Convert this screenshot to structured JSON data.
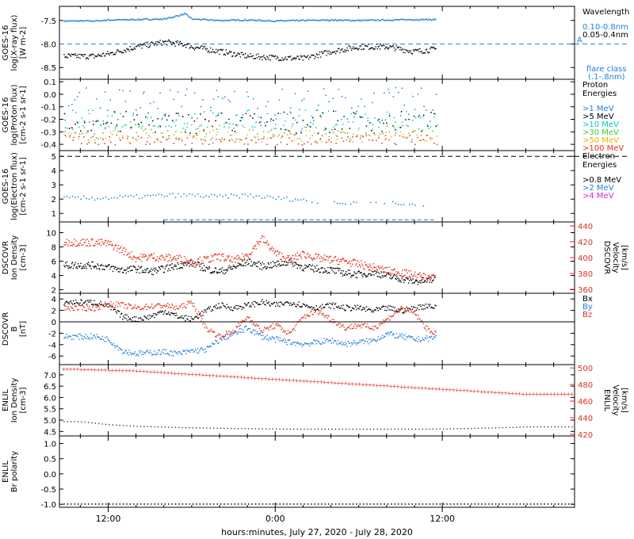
{
  "footer_label": "hours:minutes, July 27, 2020 - July 28, 2020",
  "x_ticks": [
    "12:00",
    "0:00",
    "12:00"
  ],
  "chart_data": [
    {
      "type": "scatter",
      "id": "xray",
      "ylabel_lines": [
        "GOES-16",
        "log(X-ray flux)",
        "[W m-2]"
      ],
      "yrange": [
        -8.75,
        -7.2
      ],
      "y_ticks": [
        "-7.5",
        "-8.0",
        "-8.5"
      ],
      "legend_title": [
        "Wavelength"
      ],
      "legend": [
        {
          "name": "0.10-0.8nm",
          "color": "#1f7fdc"
        },
        {
          "name": "0.05-0.4nm",
          "color": "#000000"
        }
      ],
      "annotations": [
        "A",
        "flare class",
        "(.1-.8nm)"
      ],
      "reference_line": {
        "y": -8.0,
        "label": "A",
        "color": "#1f7fdc"
      },
      "x_hours": [
        -1,
        0,
        2,
        4,
        5.5,
        6,
        8,
        10,
        12,
        14,
        16,
        18,
        20,
        22,
        23.5
      ],
      "series": [
        {
          "name": "0.10-0.8nm",
          "color": "#1f7fdc",
          "y": [
            -7.5,
            -7.48,
            -7.47,
            -7.46,
            -7.35,
            -7.46,
            -7.49,
            -7.48,
            -7.5,
            -7.49,
            -7.48,
            -7.49,
            -7.48,
            -7.47,
            -7.47
          ]
        },
        {
          "name": "0.05-0.4nm",
          "color": "#000000",
          "y": [
            -8.25,
            -8.2,
            -8.05,
            -7.95,
            -8.0,
            -8.05,
            -8.15,
            -8.25,
            -8.28,
            -8.3,
            -8.15,
            -8.05,
            -8.05,
            -8.15,
            -8.1
          ]
        }
      ]
    },
    {
      "type": "scatter",
      "id": "proton",
      "ylabel_lines": [
        "GOES-16",
        "log(Proton flux)",
        "[cm-2 s-1 sr-1]"
      ],
      "yrange": [
        -0.45,
        0.12
      ],
      "y_ticks": [
        "0.1",
        "0.0",
        "-0.1",
        "-0.2",
        "-0.3",
        "-0.4"
      ],
      "legend_title": [
        "Proton",
        "Energies"
      ],
      "legend": [
        {
          "name": ">1 MeV",
          "color": "#1f7fdc"
        },
        {
          "name": ">5 MeV",
          "color": "#000000"
        },
        {
          "name": ">10 MeV",
          "color": "#00c8c8"
        },
        {
          "name": ">30 MeV",
          "color": "#3cc83c"
        },
        {
          "name": ">50 MeV",
          "color": "#e6b400"
        },
        {
          "name": ">100 MeV",
          "color": "#e0301e"
        }
      ],
      "series": [
        {
          "name": ">1 MeV",
          "color": "#1f7fdc",
          "center": -0.08,
          "spread": 0.14
        },
        {
          "name": ">5 MeV",
          "color": "#000000",
          "center": -0.22,
          "spread": 0.09
        },
        {
          "name": ">10 MeV",
          "color": "#00c8c8",
          "center": -0.2,
          "spread": 0.08
        },
        {
          "name": ">30 MeV",
          "color": "#3cc83c",
          "center": -0.3,
          "spread": 0.06
        },
        {
          "name": ">50 MeV",
          "color": "#e6b400",
          "center": -0.33,
          "spread": 0.05
        },
        {
          "name": ">100 MeV",
          "color": "#e0301e",
          "center": -0.36,
          "spread": 0.04
        }
      ]
    },
    {
      "type": "scatter",
      "id": "electron",
      "ylabel_lines": [
        "GOES-16",
        "log(Electron flux)",
        "[cm-2 s-1 sr-1]"
      ],
      "yrange": [
        0.4,
        5.4
      ],
      "y_ticks": [
        "5",
        "4",
        "3",
        "2",
        "1"
      ],
      "legend_title": [
        "Electron",
        "Energies"
      ],
      "legend": [
        {
          "name": ">0.8 MeV",
          "color": "#000000"
        },
        {
          "name": ">2 MeV",
          "color": "#1f7fdc"
        },
        {
          "name": ">4 MeV",
          "color": "#e020e0"
        }
      ],
      "reference_line": {
        "y": 5.0,
        "color": "#000000"
      },
      "series": [
        {
          "name": ">2 MeV",
          "color": "#1f7fdc",
          "x_hours": [
            -1,
            2,
            4,
            6,
            8,
            10,
            12,
            14,
            15,
            17,
            19,
            21,
            23
          ],
          "y": [
            2.1,
            2.2,
            2.3,
            2.3,
            2.2,
            2.3,
            2.1,
            2.0,
            1.9,
            1.8,
            1.8,
            1.7,
            1.6
          ]
        }
      ]
    },
    {
      "type": "line",
      "id": "dscovr_density",
      "ylabel_lines": [
        "DSCOVR",
        "Ion Density",
        "[cm-3]"
      ],
      "y2label_lines": [
        "DSCOVR",
        "Velocity",
        "[km/s]"
      ],
      "yrange": [
        1.5,
        11.5
      ],
      "y2range": [
        355,
        445
      ],
      "y_ticks": [
        "10",
        "8",
        "6",
        "4",
        "2"
      ],
      "y2_ticks": [
        "440",
        "420",
        "400",
        "380",
        "360"
      ],
      "x_hours": [
        -1,
        0,
        1,
        2,
        3,
        4,
        5,
        6,
        7,
        8,
        9,
        10,
        11,
        12,
        13,
        14,
        15,
        16,
        17,
        18,
        19,
        20,
        21,
        22,
        23,
        24
      ],
      "series": [
        {
          "name": "Ion Density",
          "color": "#000000",
          "axis": "left",
          "y": [
            5.5,
            5.2,
            4.8,
            5.0,
            4.6,
            5.0,
            5.5,
            5.8,
            5.0,
            4.6,
            5.2,
            6.0,
            5.4,
            5.6,
            6.0,
            5.2,
            5.0,
            4.8,
            4.4,
            4.2,
            4.5,
            4.0,
            3.6,
            3.2,
            3.4,
            3.8
          ]
        },
        {
          "name": "Velocity",
          "color": "#e0301e",
          "axis": "right",
          "y": [
            420,
            418,
            410,
            400,
            402,
            400,
            400,
            395,
            398,
            402,
            396,
            404,
            425,
            406,
            398,
            405,
            400,
            398,
            396,
            392,
            388,
            384,
            382,
            378,
            376,
            372
          ]
        }
      ]
    },
    {
      "type": "scatter",
      "id": "dscovr_b",
      "ylabel_lines": [
        "DSCOVR",
        "B",
        "[nT]"
      ],
      "yrange": [
        -7.5,
        5
      ],
      "y_ticks": [
        "4",
        "2",
        "0",
        "-2",
        "-4",
        "-6"
      ],
      "y_ticks_extra": [
        "2"
      ],
      "legend": [
        {
          "name": "Bx",
          "color": "#000000"
        },
        {
          "name": "By",
          "color": "#1f7fdc"
        },
        {
          "name": "Bz",
          "color": "#e0301e"
        }
      ],
      "x_hours": [
        -1,
        0,
        1,
        2,
        3,
        4,
        5,
        6,
        7,
        8,
        9,
        10,
        11,
        12,
        13,
        14,
        15,
        16,
        17,
        18,
        19,
        20,
        21,
        22,
        23,
        24
      ],
      "series": [
        {
          "name": "Bx",
          "color": "#000000",
          "y": [
            3.5,
            2.8,
            1.0,
            0.5,
            1.0,
            2.0,
            1.0,
            0.5,
            2.0,
            3.0,
            2.5,
            3.0,
            3.5,
            3.0,
            3.5,
            3.0,
            2.5,
            3.0,
            2.5,
            2.5,
            2.0,
            2.5,
            2.0,
            2.5,
            3.0,
            2.0
          ]
        },
        {
          "name": "By",
          "color": "#1f7fdc",
          "y": [
            -2.5,
            -3.0,
            -5.0,
            -5.5,
            -5.3,
            -5.2,
            -5.5,
            -5.0,
            -4.8,
            -3.0,
            -2.0,
            -1.0,
            -2.5,
            -3.0,
            -3.5,
            -3.8,
            -3.5,
            -3.2,
            -3.8,
            -3.5,
            -3.2,
            -2.0,
            -2.5,
            -3.0,
            -2.8,
            -2.5
          ]
        },
        {
          "name": "Bz",
          "color": "#e0301e",
          "y": [
            2.5,
            3.2,
            3.0,
            2.5,
            2.8,
            3.0,
            2.5,
            3.5,
            -1.0,
            -2.5,
            -1.5,
            1.0,
            -1.5,
            -0.5,
            -2.0,
            1.0,
            2.0,
            0.5,
            -1.0,
            -0.5,
            -1.0,
            0.5,
            2.5,
            1.5,
            -1.5,
            -2.0
          ]
        }
      ]
    },
    {
      "type": "line",
      "id": "enlil_density",
      "ylabel_lines": [
        "ENLIL",
        "Ion Density",
        "[cm-3]"
      ],
      "y2label_lines": [
        "ENLIL",
        "Velocity",
        "[km/s]"
      ],
      "yrange": [
        4.3,
        7.45
      ],
      "y2range": [
        418,
        504
      ],
      "y_ticks": [
        "7.0",
        "6.5",
        "6.0",
        "5.5",
        "5.0",
        "4.5"
      ],
      "y2_ticks": [
        "500",
        "480",
        "460",
        "440",
        "420"
      ],
      "x_hours": [
        -2,
        0,
        2,
        4,
        6,
        8,
        10,
        12,
        14,
        16,
        18,
        20,
        22,
        24,
        26,
        28,
        30
      ],
      "series": [
        {
          "name": "Ion Density",
          "color": "#000000",
          "axis": "left",
          "y": [
            4.95,
            4.82,
            4.75,
            4.71,
            4.68,
            4.66,
            4.64,
            4.63,
            4.62,
            4.62,
            4.62,
            4.62,
            4.62,
            4.63,
            4.65,
            4.68,
            4.72
          ]
        },
        {
          "name": "Velocity",
          "color": "#e0301e",
          "axis": "right",
          "y": [
            499,
            498,
            497,
            495,
            493,
            491,
            489,
            487,
            485,
            483,
            481,
            479,
            477,
            475,
            473,
            471,
            469
          ]
        }
      ]
    },
    {
      "type": "line",
      "id": "enlil_polarity",
      "ylabel_lines": [
        "ENLIL",
        "Br polarity"
      ],
      "yrange": [
        -1.1,
        1.25
      ],
      "y_ticks": [
        "1.0",
        "0.5",
        "0.0",
        "-0.5",
        "-1.0"
      ],
      "x_hours": [
        -2,
        30
      ],
      "series": [
        {
          "name": "Br polarity",
          "color": "#000000",
          "y": [
            -1.0,
            -1.0
          ]
        }
      ]
    }
  ]
}
